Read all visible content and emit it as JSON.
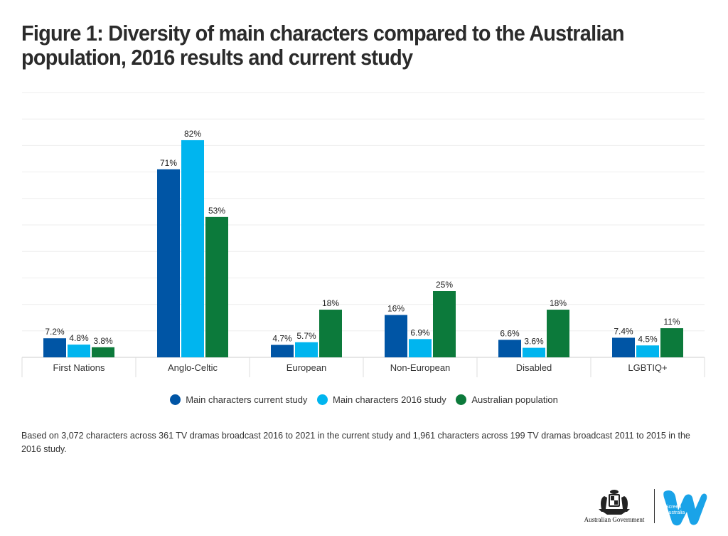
{
  "title": "Figure 1: Diversity of main characters compared to the Australian population, 2016 results and current study",
  "chart_data": {
    "type": "bar",
    "categories": [
      "First Nations",
      "Anglo-Celtic",
      "European",
      "Non-European",
      "Disabled",
      "LGBTIQ+"
    ],
    "series": [
      {
        "name": "Main characters current study",
        "color": "#0055a5",
        "values": [
          7.2,
          71,
          4.7,
          16,
          6.6,
          7.4
        ],
        "labels": [
          "7.2%",
          "71%",
          "4.7%",
          "16%",
          "6.6%",
          "7.4%"
        ]
      },
      {
        "name": "Main characters 2016 study",
        "color": "#00b5ef",
        "values": [
          4.8,
          82,
          5.7,
          6.9,
          3.6,
          4.5
        ],
        "labels": [
          "4.8%",
          "82%",
          "5.7%",
          "6.9%",
          "3.6%",
          "4.5%"
        ]
      },
      {
        "name": "Australian population",
        "color": "#0c7a3b",
        "values": [
          3.8,
          53,
          18,
          25,
          18,
          11
        ],
        "labels": [
          "3.8%",
          "53%",
          "18%",
          "25%",
          "18%",
          "11%"
        ]
      }
    ],
    "ylim": [
      0,
      100
    ],
    "grid": true,
    "legend_position": "bottom-center"
  },
  "legend": {
    "items": [
      {
        "label": "Main characters current study",
        "color": "#0055a5"
      },
      {
        "label": "Main characters 2016 study",
        "color": "#00b5ef"
      },
      {
        "label": "Australian population",
        "color": "#0c7a3b"
      }
    ]
  },
  "footnote": "Based on 3,072 characters across 361 TV dramas broadcast 2016 to 2021 in the current study and 1,961 characters across 199 TV dramas broadcast 2011 to 2015 in the 2016 study.",
  "logos": {
    "government": "Australian Government",
    "screen_australia": [
      "Screen",
      "Australia"
    ]
  }
}
